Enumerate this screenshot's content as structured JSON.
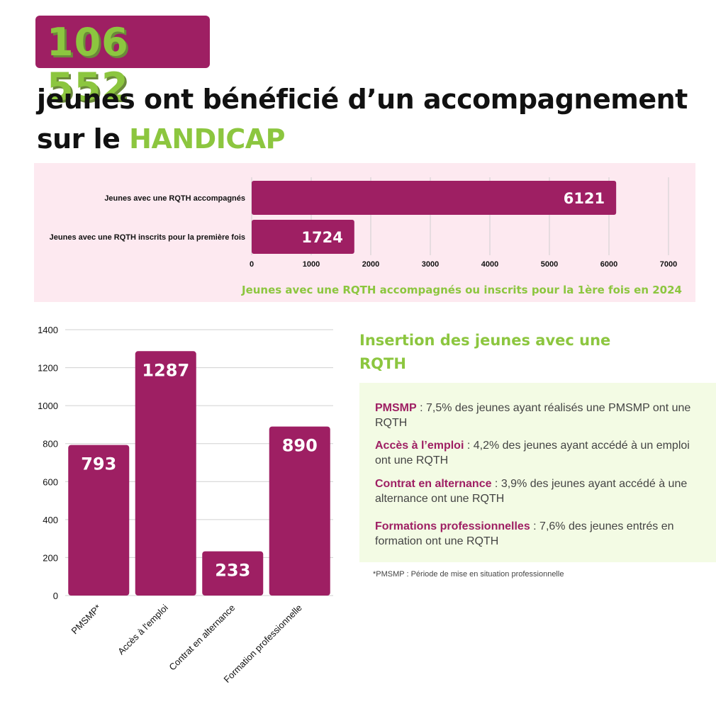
{
  "header": {
    "number": "106 552",
    "headline_text": "jeunes ont bénéficié d’un accompagnement sur le ",
    "headline_highlight": "HANDICAP"
  },
  "colors": {
    "primary": "#9e1f63",
    "accent": "#8cc63f",
    "top_panel_bg": "#fde9f0",
    "right_panel_bg": "#f3fbe4"
  },
  "chart_data": [
    {
      "type": "bar",
      "orientation": "horizontal",
      "categories": [
        "Jeunes avec une RQTH accompagnés",
        "Jeunes avec une RQTH inscrits pour la première fois"
      ],
      "values": [
        6121,
        1724
      ],
      "xlim": [
        0,
        7000
      ],
      "xticks": [
        0,
        1000,
        2000,
        3000,
        4000,
        5000,
        6000,
        7000
      ],
      "title": "Jeunes avec une RQTH accompagnés ou inscrits pour la 1ère fois en 2024",
      "grid": true
    },
    {
      "type": "bar",
      "orientation": "vertical",
      "categories": [
        "PMSMP*",
        "Accès à l'emploi",
        "Contrat en alternance",
        "Formation professionnelle"
      ],
      "values": [
        793,
        1287,
        233,
        890
      ],
      "ylim": [
        0,
        1400
      ],
      "yticks": [
        0,
        200,
        400,
        600,
        800,
        1000,
        1200,
        1400
      ],
      "grid": true
    }
  ],
  "insertion": {
    "title": "Insertion des jeunes avec une RQTH",
    "items": [
      {
        "label": "PMSMP",
        "text": " : 7,5% des jeunes ayant réalisés une PMSMP ont une RQTH"
      },
      {
        "label": "Accès à l’emploi",
        "text": " : 4,2% des jeunes ayant accédé à un emploi ont une RQTH"
      },
      {
        "label": "Contrat en alternance",
        "text": " : 3,9% des jeunes ayant accédé à une alternance ont une RQTH"
      },
      {
        "label": "Formations  professionnelles",
        "text": " : 7,6% des jeunes entrés en formation ont une RQTH"
      }
    ],
    "footnote": "*PMSMP : Période de mise en situation professionnelle"
  }
}
